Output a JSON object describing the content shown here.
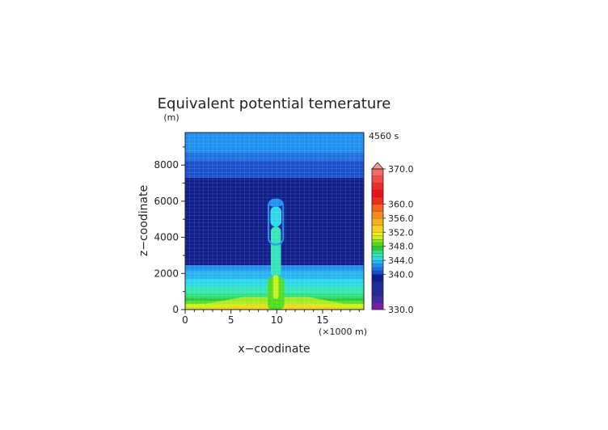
{
  "chart_data": {
    "type": "heatmap",
    "title": "Equivalent potential temerature",
    "time_label": "4560 s",
    "xlabel": "x−coodinate",
    "ylabel": "z−coodinate",
    "x_unit": "(×1000 m)",
    "y_unit": "(m)",
    "xlim": [
      0,
      19.5
    ],
    "ylim": [
      0,
      9800
    ],
    "x_ticks": [
      "0",
      "5",
      "10",
      "15"
    ],
    "y_ticks": [
      "0",
      "2000",
      "4000",
      "6000",
      "8000"
    ],
    "grid": true,
    "colorbar": {
      "min": 330,
      "max": 370,
      "labels": [
        "370.0",
        "360.0",
        "356.0",
        "352.0",
        "348.0",
        "344.0",
        "340.0",
        "330.0"
      ],
      "levels": [
        {
          "from": 330,
          "to": 332,
          "color": "#7b1fa2"
        },
        {
          "from": 332,
          "to": 334,
          "color": "#3f2a9e"
        },
        {
          "from": 334,
          "to": 336,
          "color": "#22279a"
        },
        {
          "from": 336,
          "to": 338,
          "color": "#1d2c9c"
        },
        {
          "from": 338,
          "to": 340,
          "color": "#0f1e8c"
        },
        {
          "from": 340,
          "to": 341,
          "color": "#1a4fcc"
        },
        {
          "from": 341,
          "to": 342,
          "color": "#1e6fe0"
        },
        {
          "from": 342,
          "to": 343,
          "color": "#1e90f0"
        },
        {
          "from": 343,
          "to": 344,
          "color": "#28b4f0"
        },
        {
          "from": 344,
          "to": 345,
          "color": "#2ad8e8"
        },
        {
          "from": 345,
          "to": 346,
          "color": "#33e6b8"
        },
        {
          "from": 346,
          "to": 347,
          "color": "#2ee07a"
        },
        {
          "from": 347,
          "to": 348,
          "color": "#27c93c"
        },
        {
          "from": 348,
          "to": 349,
          "color": "#4fdc1e"
        },
        {
          "from": 349,
          "to": 350,
          "color": "#8be61e"
        },
        {
          "from": 350,
          "to": 351,
          "color": "#c8f01e"
        },
        {
          "from": 351,
          "to": 352,
          "color": "#eef01e"
        },
        {
          "from": 352,
          "to": 354,
          "color": "#f5d21e"
        },
        {
          "from": 354,
          "to": 356,
          "color": "#f5b01e"
        },
        {
          "from": 356,
          "to": 358,
          "color": "#f58a1e"
        },
        {
          "from": 358,
          "to": 360,
          "color": "#f5621e"
        },
        {
          "from": 360,
          "to": 362,
          "color": "#ef2d1e"
        },
        {
          "from": 362,
          "to": 364,
          "color": "#e81414"
        },
        {
          "from": 364,
          "to": 366,
          "color": "#ee2a2a"
        },
        {
          "from": 366,
          "to": 368,
          "color": "#f24a4a"
        },
        {
          "from": 368,
          "to": 370,
          "color": "#f56a6a"
        }
      ],
      "over_color": "#f19a9a"
    },
    "horizontal_layers": [
      {
        "z0": 0,
        "z1": 80,
        "value": 356
      },
      {
        "z0": 80,
        "z1": 180,
        "value": 352
      },
      {
        "z0": 180,
        "z1": 320,
        "value": 350
      },
      {
        "z0": 320,
        "z1": 480,
        "value": 348
      },
      {
        "z0": 480,
        "z1": 650,
        "value": 347
      },
      {
        "z0": 650,
        "z1": 900,
        "value": 346
      },
      {
        "z0": 900,
        "z1": 1300,
        "value": 345
      },
      {
        "z0": 1300,
        "z1": 1700,
        "value": 344
      },
      {
        "z0": 1700,
        "z1": 2150,
        "value": 343
      },
      {
        "z0": 2150,
        "z1": 2450,
        "value": 342
      },
      {
        "z0": 2450,
        "z1": 7300,
        "value": 339
      },
      {
        "z0": 7300,
        "z1": 8250,
        "value": 340
      },
      {
        "z0": 8250,
        "z1": 8700,
        "value": 341
      },
      {
        "z0": 8700,
        "z1": 9800,
        "value": 342
      }
    ],
    "plume": [
      {
        "z0": 0,
        "z1": 1800,
        "half_width": 0.9,
        "value": 348
      },
      {
        "z0": 1800,
        "z1": 4600,
        "half_width": 0.55,
        "value": 345
      },
      {
        "z0": 4600,
        "z1": 5700,
        "half_width": 0.6,
        "value": 344
      },
      {
        "z0": 5700,
        "z1": 6100,
        "half_width": 0.8,
        "value": 342
      }
    ],
    "plume_center_x": 9.9,
    "base_wedge": {
      "half_width": 3.5,
      "z_top": 700,
      "value": 350
    }
  }
}
